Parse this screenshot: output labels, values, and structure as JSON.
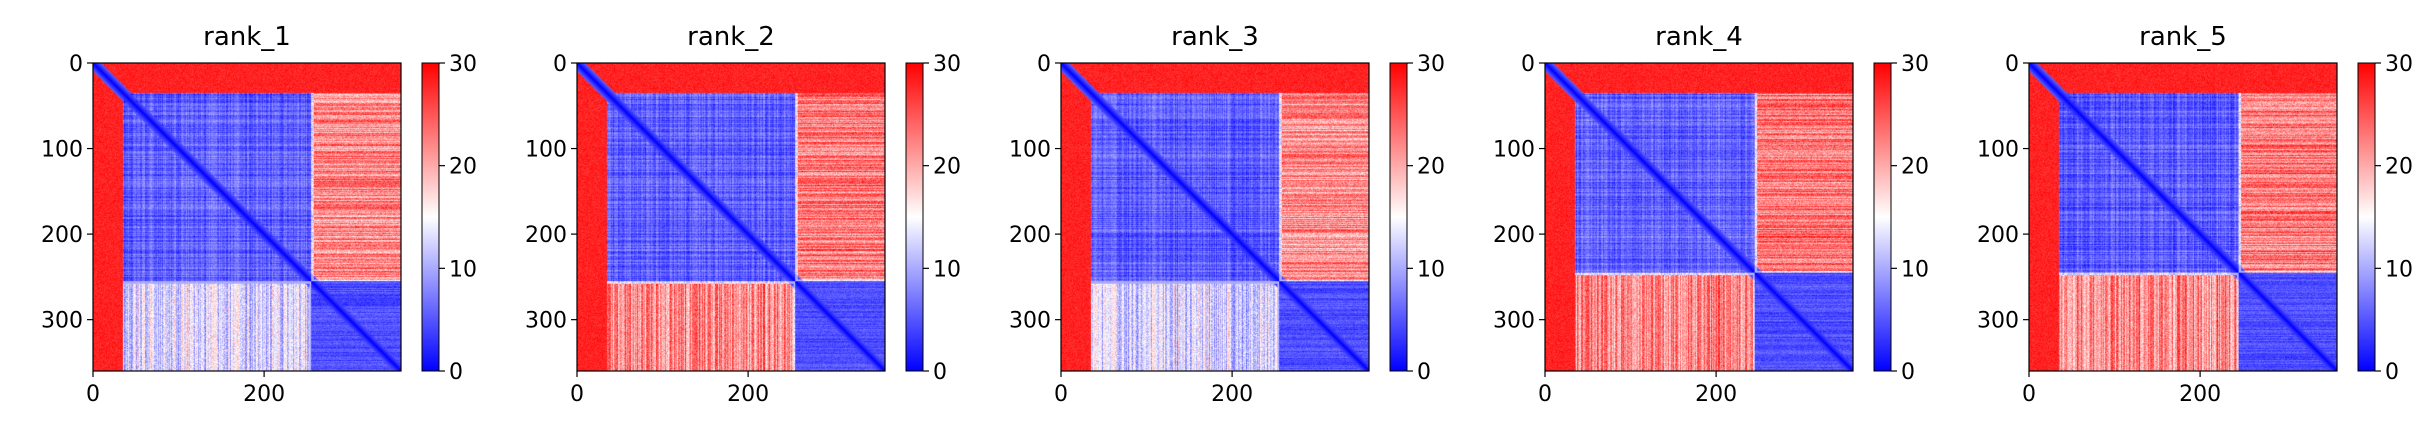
{
  "chart_data": [
    {
      "type": "heatmap",
      "title": "rank_1",
      "matrix_size": 360,
      "domain_split": 255,
      "n_term_tail": 35,
      "block_values": {
        "domain1": 5,
        "domain2": 4,
        "tail": 28,
        "inter_d1_d2_upper": 22,
        "inter_d1_d2_lower": 13
      },
      "x_ticks": [
        0,
        200
      ],
      "y_ticks": [
        0,
        100,
        200,
        300
      ],
      "colorbar": {
        "min": 0,
        "max": 30,
        "ticks": [
          0,
          10,
          20,
          30
        ],
        "colormap": "bwr"
      }
    },
    {
      "type": "heatmap",
      "title": "rank_2",
      "matrix_size": 360,
      "domain_split": 255,
      "n_term_tail": 35,
      "block_values": {
        "domain1": 5,
        "domain2": 4,
        "tail": 28,
        "inter_d1_d2_upper": 23,
        "inter_d1_d2_lower": 22
      },
      "x_ticks": [
        0,
        200
      ],
      "y_ticks": [
        0,
        100,
        200,
        300
      ],
      "colorbar": {
        "min": 0,
        "max": 30,
        "ticks": [
          0,
          10,
          20,
          30
        ],
        "colormap": "bwr"
      }
    },
    {
      "type": "heatmap",
      "title": "rank_3",
      "matrix_size": 360,
      "domain_split": 255,
      "n_term_tail": 35,
      "block_values": {
        "domain1": 5,
        "domain2": 4,
        "tail": 28,
        "inter_d1_d2_upper": 22,
        "inter_d1_d2_lower": 13
      },
      "x_ticks": [
        0,
        200
      ],
      "y_ticks": [
        0,
        100,
        200,
        300
      ],
      "colorbar": {
        "min": 0,
        "max": 30,
        "ticks": [
          0,
          10,
          20,
          30
        ],
        "colormap": "bwr"
      }
    },
    {
      "type": "heatmap",
      "title": "rank_4",
      "matrix_size": 360,
      "domain_split": 245,
      "n_term_tail": 35,
      "block_values": {
        "domain1": 5,
        "domain2": 4,
        "tail": 28,
        "inter_d1_d2_upper": 23,
        "inter_d1_d2_lower": 22
      },
      "x_ticks": [
        0,
        200
      ],
      "y_ticks": [
        0,
        100,
        200,
        300
      ],
      "colorbar": {
        "min": 0,
        "max": 30,
        "ticks": [
          0,
          10,
          20,
          30
        ],
        "colormap": "bwr"
      }
    },
    {
      "type": "heatmap",
      "title": "rank_5",
      "matrix_size": 360,
      "domain_split": 245,
      "n_term_tail": 35,
      "block_values": {
        "domain1": 5,
        "domain2": 4,
        "tail": 28,
        "inter_d1_d2_upper": 23,
        "inter_d1_d2_lower": 22
      },
      "x_ticks": [
        0,
        200
      ],
      "y_ticks": [
        0,
        100,
        200,
        300
      ],
      "colorbar": {
        "min": 0,
        "max": 30,
        "ticks": [
          0,
          10,
          20,
          30
        ],
        "colormap": "bwr"
      }
    }
  ]
}
